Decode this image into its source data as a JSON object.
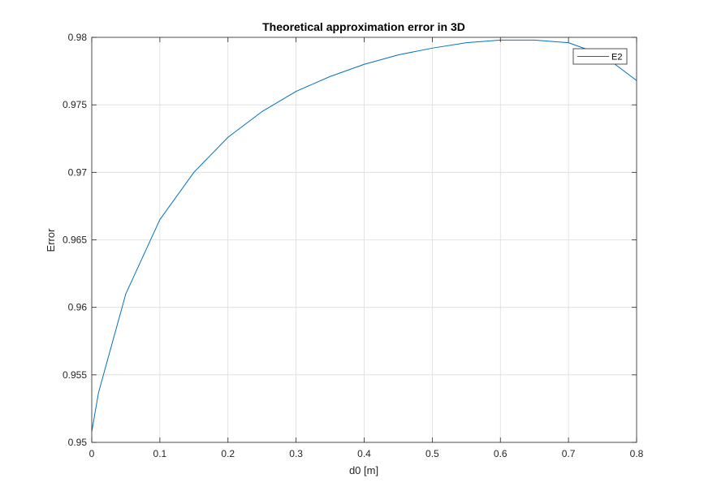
{
  "chart_data": {
    "type": "line",
    "title": "Theoretical approximation error in 3D",
    "xlabel": "d0 [m]",
    "ylabel": "Error",
    "xlim": [
      0,
      0.8
    ],
    "ylim": [
      0.95,
      0.98
    ],
    "xticks": [
      "0",
      "0.1",
      "0.2",
      "0.3",
      "0.4",
      "0.5",
      "0.6",
      "0.7",
      "0.8"
    ],
    "yticks": [
      "0.95",
      "0.955",
      "0.96",
      "0.965",
      "0.97",
      "0.975",
      "0.98"
    ],
    "grid": true,
    "legend_position": "top-right",
    "colors": {
      "series": "#0072BD",
      "grid": "#dcdcdc",
      "axes": "#262626"
    },
    "series": [
      {
        "name": "E2",
        "x": [
          0,
          0.01,
          0.05,
          0.1,
          0.15,
          0.2,
          0.25,
          0.3,
          0.35,
          0.4,
          0.45,
          0.5,
          0.55,
          0.6,
          0.65,
          0.7,
          0.75,
          0.8
        ],
        "y": [
          0.9508,
          0.9537,
          0.961,
          0.9665,
          0.97,
          0.9726,
          0.9745,
          0.976,
          0.9771,
          0.978,
          0.9787,
          0.9792,
          0.9796,
          0.9798,
          0.9798,
          0.9796,
          0.9787,
          0.9768
        ]
      }
    ]
  }
}
